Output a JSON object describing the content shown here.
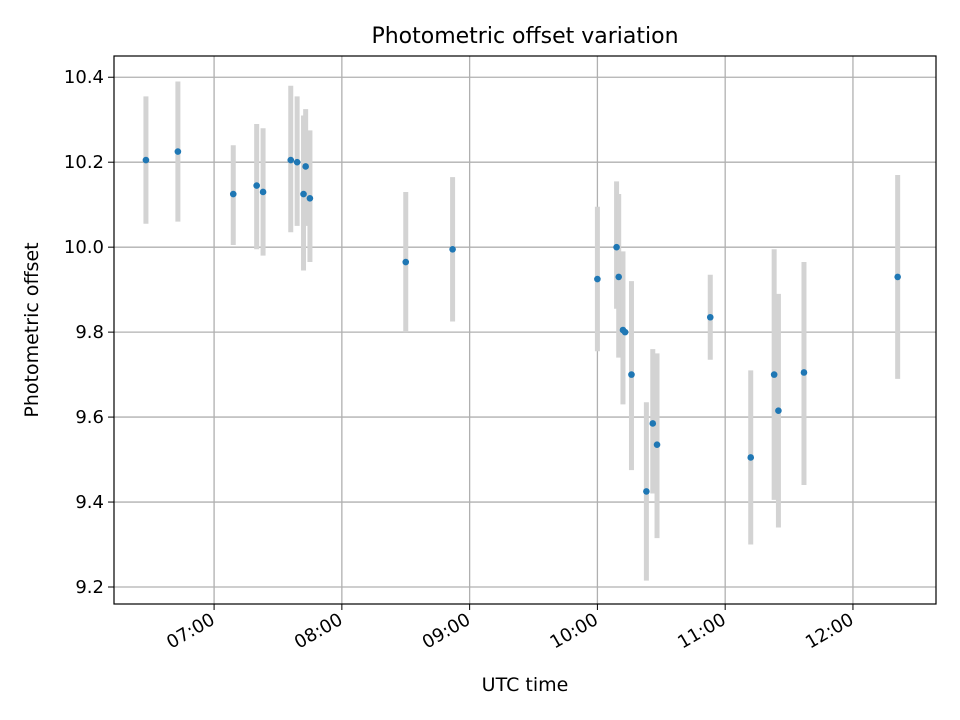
{
  "chart_data": {
    "type": "scatter",
    "title": "Photometric offset variation",
    "xlabel": "UTC time",
    "ylabel": "Photometric offset",
    "x_ticks": [
      "07:00",
      "08:00",
      "09:00",
      "10:00",
      "11:00",
      "12:00"
    ],
    "y_ticks": [
      "9.2",
      "9.4",
      "9.6",
      "9.8",
      "10.0",
      "10.2",
      "10.4"
    ],
    "xlim": [
      "06:13",
      "12:39"
    ],
    "ylim": [
      9.16,
      10.45
    ],
    "grid": true,
    "legend": "none",
    "colors": {
      "point": "#1f77b4",
      "errorbar": "#d3d3d3",
      "grid": "#b0b0b0"
    },
    "points": [
      {
        "x": "06:28",
        "y": 10.205,
        "err_low": 10.055,
        "err_high": 10.355
      },
      {
        "x": "06:43",
        "y": 10.225,
        "err_low": 10.06,
        "err_high": 10.39
      },
      {
        "x": "07:09",
        "y": 10.125,
        "err_low": 10.005,
        "err_high": 10.24
      },
      {
        "x": "07:20",
        "y": 10.145,
        "err_low": 9.995,
        "err_high": 10.29
      },
      {
        "x": "07:23",
        "y": 10.13,
        "err_low": 9.98,
        "err_high": 10.28
      },
      {
        "x": "07:36",
        "y": 10.205,
        "err_low": 10.035,
        "err_high": 10.38
      },
      {
        "x": "07:39",
        "y": 10.2,
        "err_low": 10.05,
        "err_high": 10.355
      },
      {
        "x": "07:42",
        "y": 10.125,
        "err_low": 9.945,
        "err_high": 10.31
      },
      {
        "x": "07:43",
        "y": 10.19,
        "err_low": 10.05,
        "err_high": 10.325
      },
      {
        "x": "07:45",
        "y": 10.115,
        "err_low": 9.965,
        "err_high": 10.275
      },
      {
        "x": "08:30",
        "y": 9.965,
        "err_low": 9.8,
        "err_high": 10.13
      },
      {
        "x": "08:52",
        "y": 9.995,
        "err_low": 9.825,
        "err_high": 10.165
      },
      {
        "x": "10:00",
        "y": 9.925,
        "err_low": 9.755,
        "err_high": 10.095
      },
      {
        "x": "10:09",
        "y": 10.0,
        "err_low": 9.855,
        "err_high": 10.155
      },
      {
        "x": "10:10",
        "y": 9.93,
        "err_low": 9.74,
        "err_high": 10.125
      },
      {
        "x": "10:12",
        "y": 9.805,
        "err_low": 9.63,
        "err_high": 9.99
      },
      {
        "x": "10:13",
        "y": 9.8,
        "err_low": 9.8,
        "err_high": 9.8
      },
      {
        "x": "10:16",
        "y": 9.7,
        "err_low": 9.475,
        "err_high": 9.92
      },
      {
        "x": "10:23",
        "y": 9.425,
        "err_low": 9.215,
        "err_high": 9.635
      },
      {
        "x": "10:26",
        "y": 9.585,
        "err_low": 9.42,
        "err_high": 9.76
      },
      {
        "x": "10:28",
        "y": 9.535,
        "err_low": 9.315,
        "err_high": 9.75
      },
      {
        "x": "10:53",
        "y": 9.835,
        "err_low": 9.735,
        "err_high": 9.935
      },
      {
        "x": "11:12",
        "y": 9.505,
        "err_low": 9.3,
        "err_high": 9.71
      },
      {
        "x": "11:23",
        "y": 9.7,
        "err_low": 9.405,
        "err_high": 9.995
      },
      {
        "x": "11:25",
        "y": 9.615,
        "err_low": 9.34,
        "err_high": 9.89
      },
      {
        "x": "11:37",
        "y": 9.705,
        "err_low": 9.44,
        "err_high": 9.965
      },
      {
        "x": "12:21",
        "y": 9.93,
        "err_low": 9.69,
        "err_high": 10.17
      }
    ]
  }
}
